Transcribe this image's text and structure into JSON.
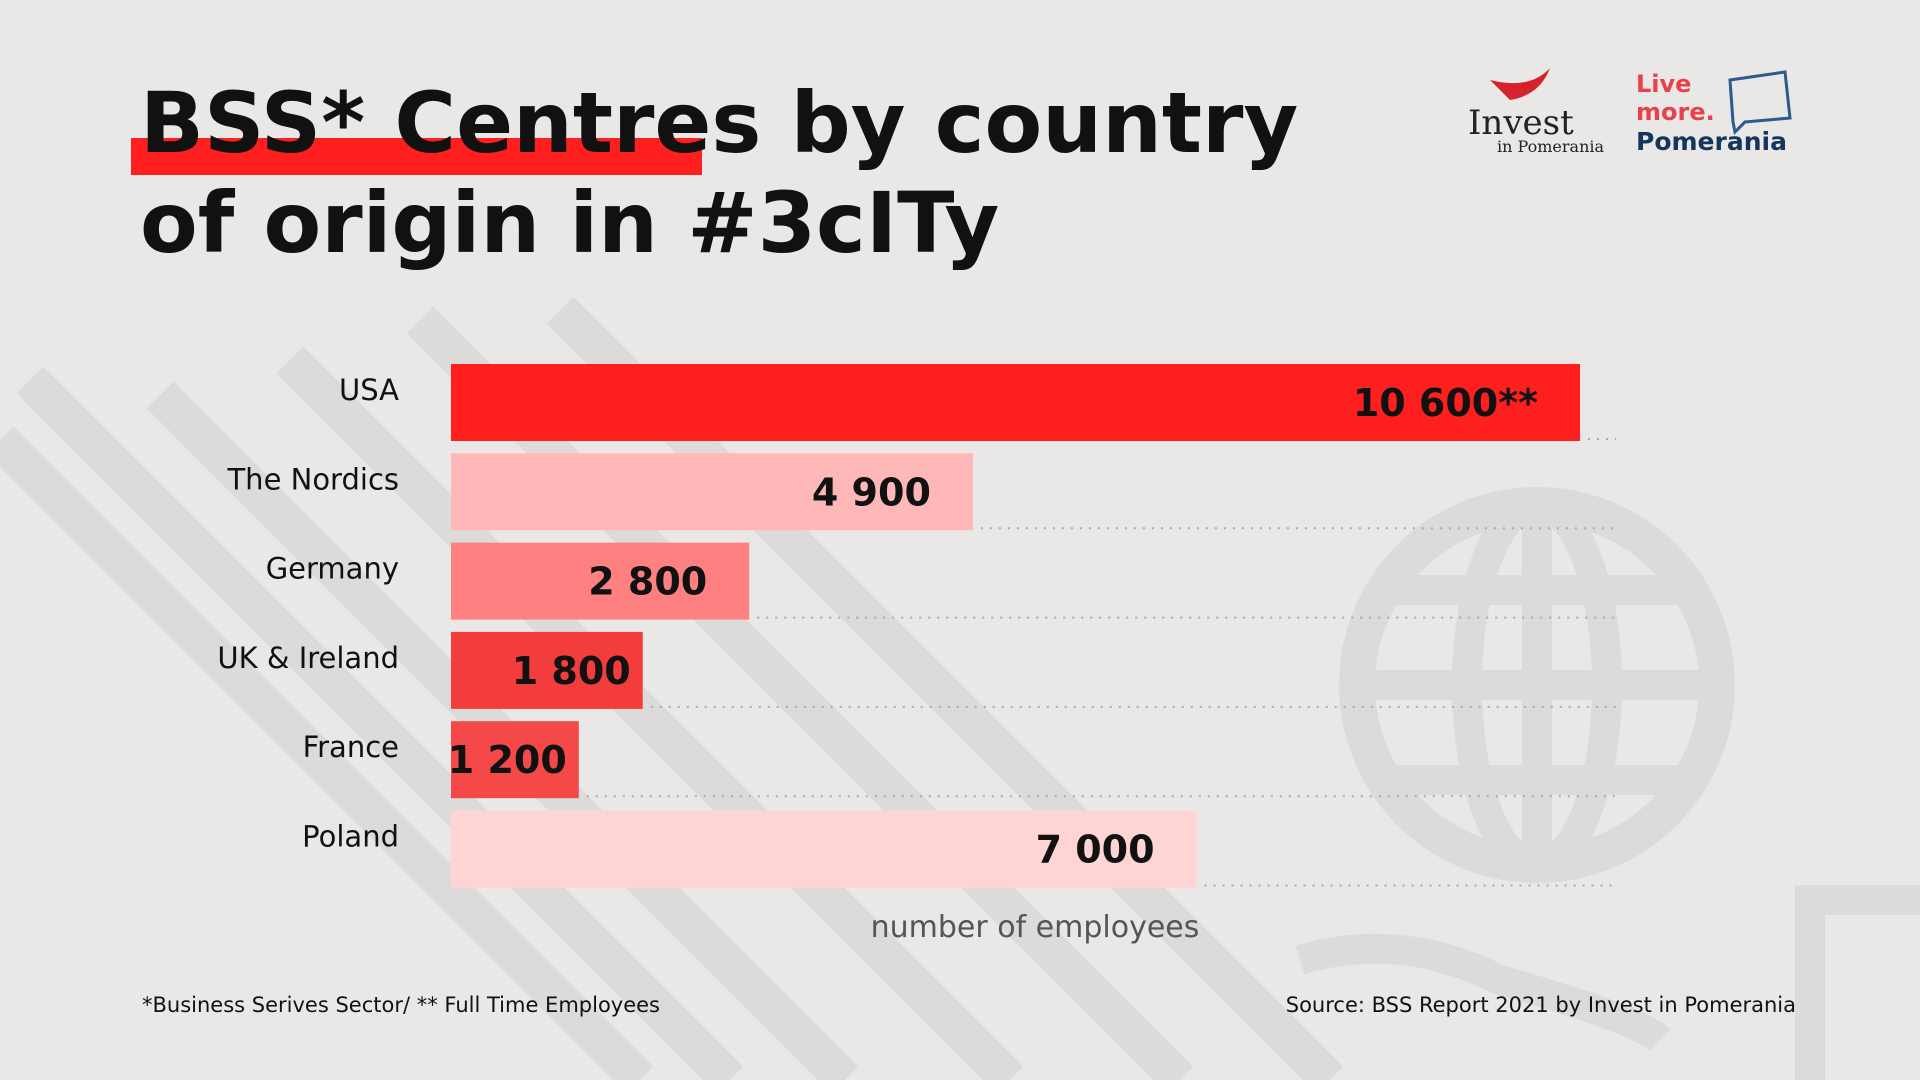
{
  "chart_data": {
    "type": "bar",
    "orientation": "horizontal",
    "title": [
      "BSS* Centres by country",
      "of origin in #3cITy"
    ],
    "categories": [
      "USA",
      "The Nordics",
      "Germany",
      "UK & Ireland",
      "France",
      "Poland"
    ],
    "values": [
      10600,
      4900,
      2800,
      1800,
      1200,
      7000
    ],
    "value_labels": [
      "10 600**",
      "4 900",
      "2 800",
      "1 800",
      "1 200",
      "7 000"
    ],
    "colors": [
      "#ff1f1f",
      "#ffb8b8",
      "#ff8080",
      "#f33c3c",
      "#f54848",
      "#ffd4d4"
    ],
    "x_label": "number of employees"
  },
  "footnote": "*Business Serives Sector/ ** Full Time Employees",
  "source": "Source: BSS Report 2021 by Invest in Pomerania",
  "logos": {
    "invest": "Invest",
    "invest_sub": "in Pomerania",
    "live": "Live",
    "more": "more.",
    "pomerania": "Pomerania"
  }
}
